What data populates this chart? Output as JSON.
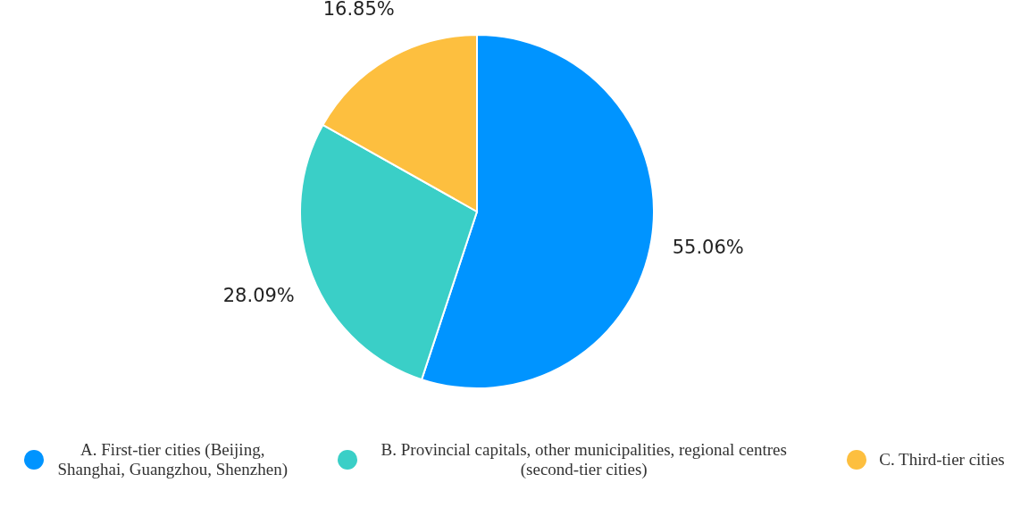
{
  "chart_data": {
    "type": "pie",
    "categories": [
      "A. First-tier cities (Beijing, Shanghai, Guangzhou, Shenzhen)",
      "B. Provincial capitals, other municipalities, regional centres (second-tier cities)",
      "C. Third-tier cities"
    ],
    "values": [
      55.06,
      28.09,
      16.85
    ],
    "colors": [
      "#0094ff",
      "#3acfc7",
      "#fdbf3f"
    ],
    "value_labels": [
      "55.06%",
      "28.09%",
      "16.85%"
    ],
    "legend": "bottom"
  }
}
